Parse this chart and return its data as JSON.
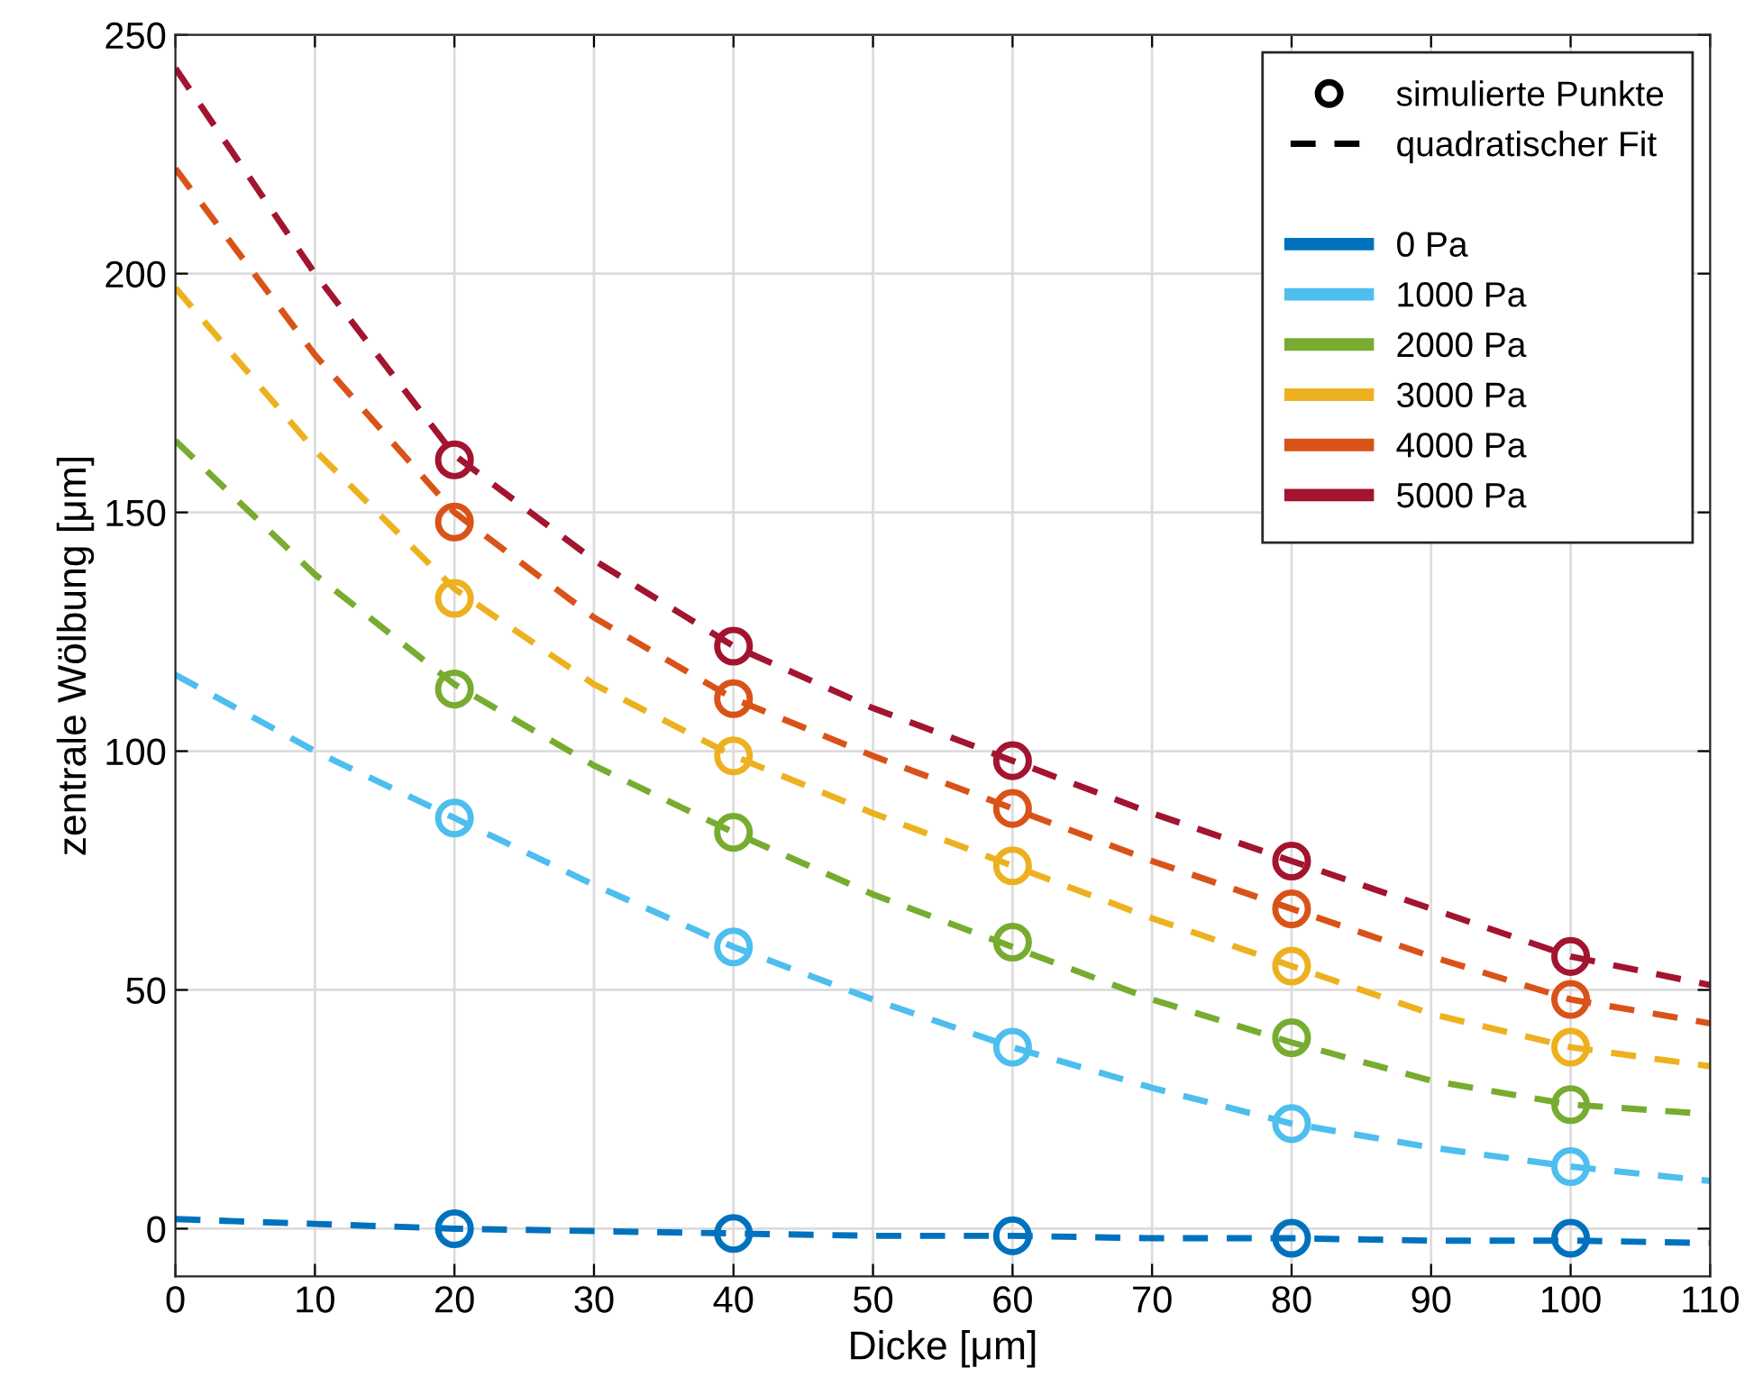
{
  "chart_data": {
    "type": "line",
    "xlabel": "Dicke [μm]",
    "ylabel": "zentrale Wölbung [μm]",
    "xlim": [
      0,
      110
    ],
    "ylim": [
      -10,
      250
    ],
    "xticks": [
      0,
      10,
      20,
      30,
      40,
      50,
      60,
      70,
      80,
      90,
      100,
      110
    ],
    "yticks": [
      0,
      50,
      100,
      150,
      200,
      250
    ],
    "grid": true,
    "legend": "top right",
    "series": [
      {
        "name": "simulierte Punkte",
        "type": "scatter",
        "marker": "circle",
        "color": "#000000"
      },
      {
        "name": "quadratischer Fit",
        "line_style": "dashed",
        "color": "#000000"
      },
      {
        "name": "0 Pa",
        "type": "scatter",
        "marker": "circle",
        "color": "#0072bd",
        "x": [
          20,
          40,
          60,
          80,
          100
        ],
        "values": [
          0,
          -1,
          -1.5,
          -2,
          -2
        ]
      },
      {
        "line_style": "dashed",
        "color": "#0072bd",
        "x": [
          0,
          10,
          20,
          30,
          40,
          50,
          60,
          70,
          80,
          90,
          100,
          110
        ],
        "values": [
          2,
          1,
          0,
          -0.5,
          -1,
          -1.5,
          -1.5,
          -2,
          -2,
          -2.5,
          -2.5,
          -3
        ]
      },
      {
        "name": "1000 Pa",
        "type": "scatter",
        "marker": "circle",
        "color": "#4dbeee",
        "x": [
          20,
          40,
          60,
          80,
          100
        ],
        "values": [
          86,
          59,
          38,
          22,
          13
        ]
      },
      {
        "line_style": "dashed",
        "color": "#4dbeee",
        "x": [
          0,
          10,
          20,
          30,
          40,
          50,
          60,
          70,
          80,
          90,
          100,
          110
        ],
        "values": [
          116,
          100,
          86,
          72,
          59,
          48,
          38,
          29.5,
          22,
          17,
          13,
          10
        ]
      },
      {
        "name": "2000 Pa",
        "type": "scatter",
        "marker": "circle",
        "color": "#77ac30",
        "x": [
          20,
          40,
          60,
          80,
          100
        ],
        "values": [
          113,
          83,
          60,
          40,
          26
        ]
      },
      {
        "line_style": "dashed",
        "color": "#77ac30",
        "x": [
          0,
          10,
          20,
          30,
          40,
          50,
          60,
          70,
          80,
          90,
          100,
          110
        ],
        "values": [
          165,
          137,
          114,
          97,
          83,
          70,
          59,
          48,
          39,
          31,
          26,
          24
        ]
      },
      {
        "name": "3000 Pa",
        "type": "scatter",
        "marker": "circle",
        "color": "#edb120",
        "x": [
          20,
          40,
          60,
          80,
          100
        ],
        "values": [
          132,
          99,
          76,
          55,
          38
        ]
      },
      {
        "line_style": "dashed",
        "color": "#edb120",
        "x": [
          0,
          10,
          20,
          30,
          40,
          50,
          60,
          70,
          80,
          90,
          100,
          110
        ],
        "values": [
          197,
          163,
          134,
          114,
          99,
          87,
          76,
          65,
          55,
          45,
          38,
          34
        ]
      },
      {
        "name": "4000 Pa",
        "type": "scatter",
        "marker": "circle",
        "color": "#d95319",
        "x": [
          20,
          40,
          60,
          80,
          100
        ],
        "values": [
          148,
          111,
          88,
          67,
          48
        ]
      },
      {
        "line_style": "dashed",
        "color": "#d95319",
        "x": [
          0,
          10,
          20,
          30,
          40,
          50,
          60,
          70,
          80,
          90,
          100,
          110
        ],
        "values": [
          222,
          183,
          150,
          128,
          111,
          99,
          88,
          77,
          67,
          57,
          48,
          43
        ]
      },
      {
        "name": "5000 Pa",
        "type": "scatter",
        "marker": "circle",
        "color": "#a2142f",
        "x": [
          20,
          40,
          60,
          80,
          100
        ],
        "values": [
          161,
          122,
          98,
          77,
          57
        ]
      },
      {
        "line_style": "dashed",
        "color": "#a2142f",
        "x": [
          0,
          10,
          20,
          30,
          40,
          50,
          60,
          70,
          80,
          90,
          100,
          110
        ],
        "values": [
          243,
          200,
          162,
          140,
          122,
          109,
          98,
          87,
          77,
          67,
          57,
          51
        ]
      }
    ]
  }
}
